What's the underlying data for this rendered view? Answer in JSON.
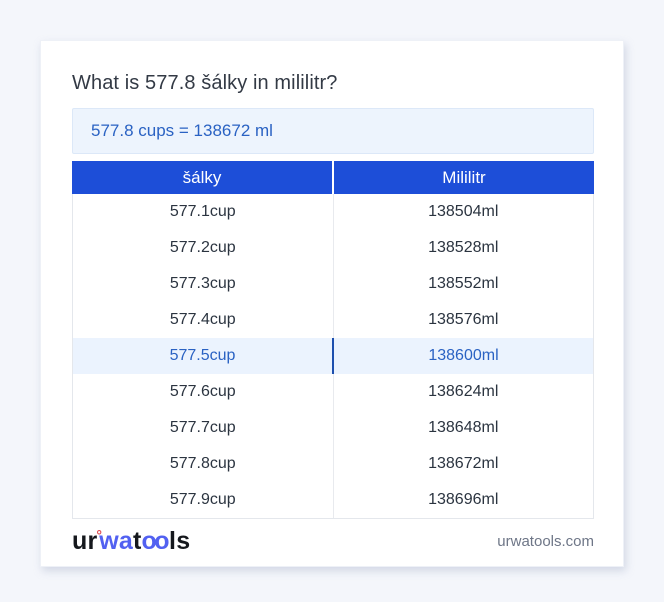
{
  "page": {
    "title": "What is 577.8 šálky in mililitr?",
    "result": "577.8 cups = 138672 ml"
  },
  "table": {
    "headers": [
      "šálky",
      "Mililitr"
    ],
    "rows": [
      {
        "cup": "577.1cup",
        "ml": "138504ml",
        "highlight": false
      },
      {
        "cup": "577.2cup",
        "ml": "138528ml",
        "highlight": false
      },
      {
        "cup": "577.3cup",
        "ml": "138552ml",
        "highlight": false
      },
      {
        "cup": "577.4cup",
        "ml": "138576ml",
        "highlight": false
      },
      {
        "cup": "577.5cup",
        "ml": "138600ml",
        "highlight": true
      },
      {
        "cup": "577.6cup",
        "ml": "138624ml",
        "highlight": false
      },
      {
        "cup": "577.7cup",
        "ml": "138648ml",
        "highlight": false
      },
      {
        "cup": "577.8cup",
        "ml": "138672ml",
        "highlight": false
      },
      {
        "cup": "577.9cup",
        "ml": "138696ml",
        "highlight": false
      }
    ]
  },
  "footer": {
    "logo": {
      "ur": "ur",
      "mark": "°",
      "wa": "wa",
      "t": "t",
      "oo": "oo",
      "ls": "ls"
    },
    "site": "urwatools.com"
  },
  "colors": {
    "page_background": "#f4f6fb",
    "card_background": "#ffffff",
    "header_background": "#1d4ed8",
    "header_text": "#ffffff",
    "result_box_background": "#edf4fd",
    "result_box_border": "#dce8f8",
    "accent_blue_text": "#2a62c3",
    "highlight_row_background": "#ebf3fe",
    "highlight_divider": "#1d4fae",
    "row_text": "#2b3440",
    "table_border": "#e4e7ec",
    "logo_blue": "#5261f1",
    "logo_mark_red": "#e04b50",
    "domain_text": "#6e7687"
  }
}
